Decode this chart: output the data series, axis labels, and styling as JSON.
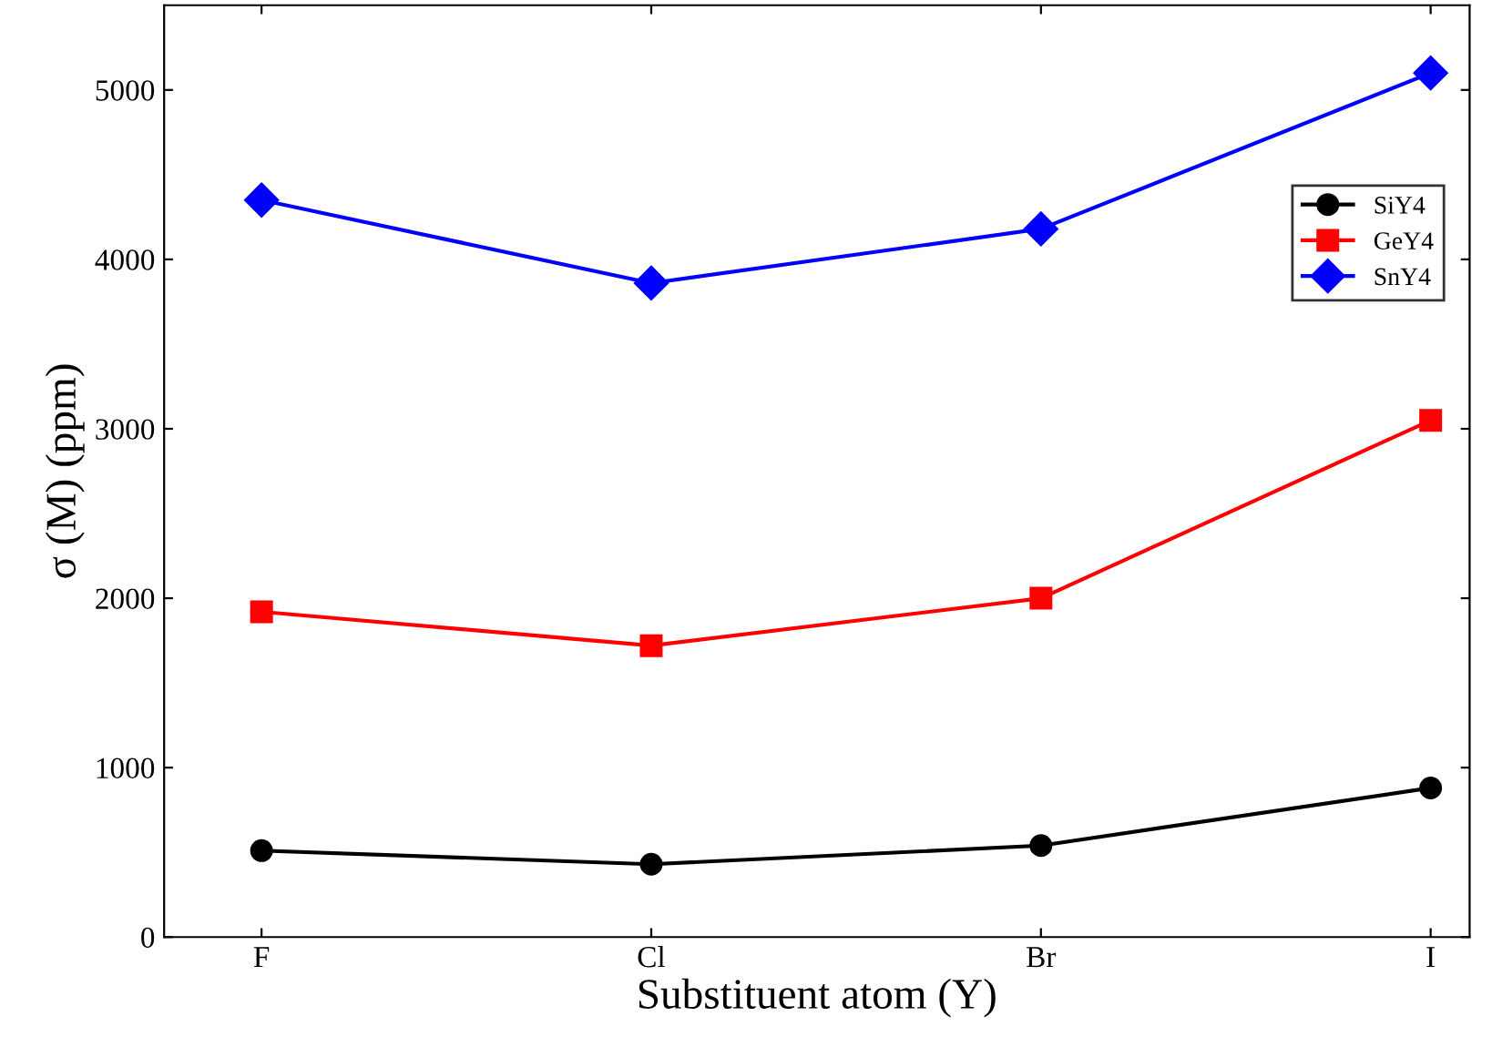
{
  "chart_data": {
    "type": "line",
    "xlabel": "Substituent atom (Y)",
    "ylabel": "σ (M) (ppm)",
    "categories": [
      "F",
      "Cl",
      "Br",
      "I"
    ],
    "ylim": [
      0,
      5500
    ],
    "yticks": [
      0,
      1000,
      2000,
      3000,
      4000,
      5000
    ],
    "grid": false,
    "legend": "right",
    "line_style": "solid",
    "series": [
      {
        "name": "SiY4",
        "color": "#000000",
        "marker": "circle",
        "values": [
          510,
          430,
          540,
          880
        ]
      },
      {
        "name": "GeY4",
        "color": "#ff0000",
        "marker": "square",
        "values": [
          1920,
          1720,
          2000,
          3050
        ]
      },
      {
        "name": "SnY4",
        "color": "#0000ff",
        "marker": "diamond",
        "values": [
          4350,
          3860,
          4180,
          5100
        ]
      }
    ]
  }
}
